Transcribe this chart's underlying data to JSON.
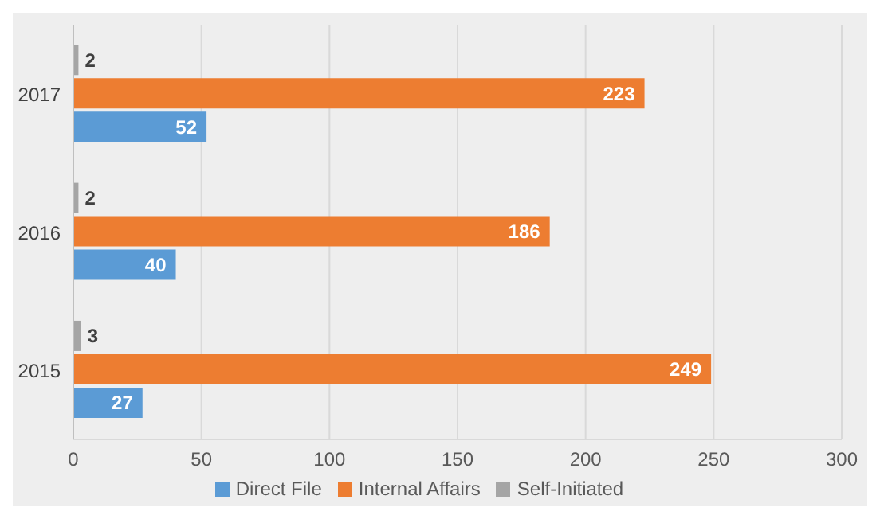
{
  "chart_data": {
    "type": "bar",
    "orientation": "horizontal",
    "categories": [
      "2017",
      "2016",
      "2015"
    ],
    "series": [
      {
        "name": "Self-Initiated",
        "color": "#a5a5a5",
        "values": [
          2,
          2,
          3
        ]
      },
      {
        "name": "Internal Affairs",
        "color": "#ed7d31",
        "values": [
          223,
          186,
          249
        ]
      },
      {
        "name": "Direct File",
        "color": "#5b9bd5",
        "values": [
          52,
          40,
          27
        ]
      }
    ],
    "xlim": [
      0,
      300
    ],
    "xticks": [
      0,
      50,
      100,
      150,
      200,
      250,
      300
    ],
    "grid": "x",
    "legend": "bottom",
    "data_labels": true
  }
}
